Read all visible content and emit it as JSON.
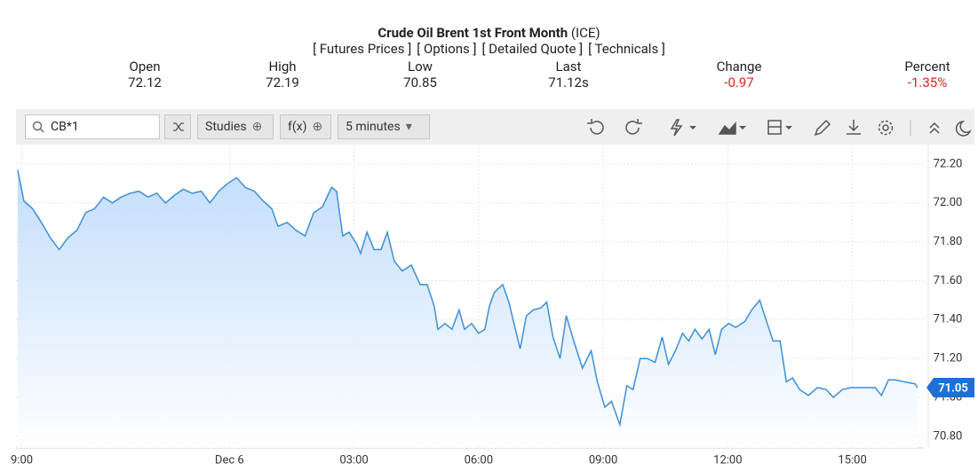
{
  "header": {
    "title": "Crude Oil Brent 1st Front Month",
    "exchange": "(ICE)",
    "links": [
      "[ Futures Prices ]",
      "[ Options ]",
      "[ Detailed Quote ]",
      "[ Technicals ]"
    ],
    "quote": [
      {
        "label": "Open",
        "value": "72.12"
      },
      {
        "label": "High",
        "value": "72.19"
      },
      {
        "label": "Low",
        "value": "70.85"
      },
      {
        "label": "Last",
        "value": "71.12s"
      },
      {
        "label": "Change",
        "value": "-0.97"
      },
      {
        "label": "Percent",
        "value": "-1.35%"
      }
    ]
  },
  "toolbar": {
    "search": "CB*1",
    "buttons": [
      "Studies",
      "f(x)",
      "5 minutes"
    ]
  },
  "chart_data": {
    "type": "line",
    "x": [
      -5.1,
      -4.95,
      -4.74,
      -4.53,
      -4.31,
      -4.1,
      -3.89,
      -3.67,
      -3.46,
      -3.25,
      -3.03,
      -2.82,
      -2.61,
      -2.39,
      -2.18,
      -1.96,
      -1.75,
      -1.54,
      -1.32,
      -1.11,
      -0.9,
      -0.68,
      -0.47,
      -0.26,
      -0.04,
      0.17,
      0.38,
      0.6,
      0.81,
      1.02,
      1.17,
      1.39,
      1.6,
      1.82,
      2.03,
      2.24,
      2.46,
      2.58,
      2.73,
      2.88,
      3.06,
      3.16,
      3.31,
      3.48,
      3.65,
      3.8,
      3.97,
      4.16,
      4.38,
      4.59,
      4.76,
      4.93,
      5.02,
      5.19,
      5.36,
      5.53,
      5.66,
      5.83,
      6.0,
      6.15,
      6.26,
      6.38,
      6.58,
      6.73,
      6.85,
      7.0,
      7.15,
      7.32,
      7.5,
      7.64,
      7.79,
      7.96,
      8.11,
      8.29,
      8.5,
      8.71,
      8.86,
      9.04,
      9.2,
      9.4,
      9.57,
      9.72,
      9.89,
      10.06,
      10.25,
      10.42,
      10.57,
      10.74,
      10.91,
      11.06,
      11.21,
      11.38,
      11.55,
      11.7,
      11.85,
      12.02,
      12.19,
      12.41,
      12.58,
      12.77,
      12.92,
      13.09,
      13.26,
      13.41,
      13.56,
      13.73,
      13.94,
      14.16,
      14.37,
      14.54,
      14.76,
      14.97,
      15.18,
      15.4,
      15.55,
      15.7,
      15.87,
      16.04,
      16.25,
      16.51,
      16.57
    ],
    "series": [
      {
        "color": "#3d8fd9",
        "values": [
          72.17,
          72.01,
          71.97,
          71.9,
          71.82,
          71.76,
          71.82,
          71.86,
          71.95,
          71.97,
          72.03,
          72.0,
          72.03,
          72.05,
          72.06,
          72.03,
          72.05,
          72.0,
          72.04,
          72.07,
          72.05,
          72.06,
          72.0,
          72.06,
          72.1,
          72.13,
          72.08,
          72.06,
          72.01,
          71.97,
          71.88,
          71.9,
          71.86,
          71.83,
          71.95,
          71.98,
          72.08,
          72.06,
          71.83,
          71.85,
          71.79,
          71.74,
          71.85,
          71.76,
          71.76,
          71.85,
          71.7,
          71.65,
          71.68,
          71.58,
          71.58,
          71.47,
          71.35,
          71.38,
          71.35,
          71.45,
          71.35,
          71.38,
          71.33,
          71.35,
          71.47,
          71.54,
          71.58,
          71.49,
          71.38,
          71.25,
          71.42,
          71.45,
          71.46,
          71.49,
          71.31,
          71.2,
          71.42,
          71.29,
          71.15,
          71.24,
          71.08,
          70.95,
          70.98,
          70.86,
          71.06,
          71.04,
          71.2,
          71.2,
          71.18,
          71.31,
          71.17,
          71.24,
          71.33,
          71.29,
          71.35,
          71.3,
          71.35,
          71.22,
          71.35,
          71.38,
          71.36,
          71.39,
          71.45,
          71.5,
          71.4,
          71.29,
          71.29,
          71.08,
          71.1,
          71.04,
          71.01,
          71.05,
          71.04,
          71.0,
          71.04,
          71.05,
          71.05,
          71.05,
          71.05,
          71.01,
          71.09,
          71.09,
          71.08,
          71.07,
          71.05
        ]
      }
    ],
    "xlim": [
      -5.14,
      16.72
    ],
    "xticks": [
      {
        "value": -5,
        "label": "9:00"
      },
      {
        "value": 0,
        "label": "Dec 6"
      },
      {
        "value": 3,
        "label": "03:00"
      },
      {
        "value": 6,
        "label": "06:00"
      },
      {
        "value": 9,
        "label": "09:00"
      },
      {
        "value": 12,
        "label": "12:00"
      },
      {
        "value": 15,
        "label": "15:00"
      }
    ],
    "ylim": [
      70.74,
      72.3
    ],
    "yticks": [
      {
        "value": 70.8,
        "label": "70.80"
      },
      {
        "value": 71,
        "label": "71.00"
      },
      {
        "value": 71.2,
        "label": "71.20"
      },
      {
        "value": 71.4,
        "label": "71.40"
      },
      {
        "value": 71.6,
        "label": "71.60"
      },
      {
        "value": 71.8,
        "label": "71.80"
      },
      {
        "value": 72,
        "label": "72.00"
      },
      {
        "value": 72.2,
        "label": "72.20"
      }
    ],
    "grid": true
  }
}
